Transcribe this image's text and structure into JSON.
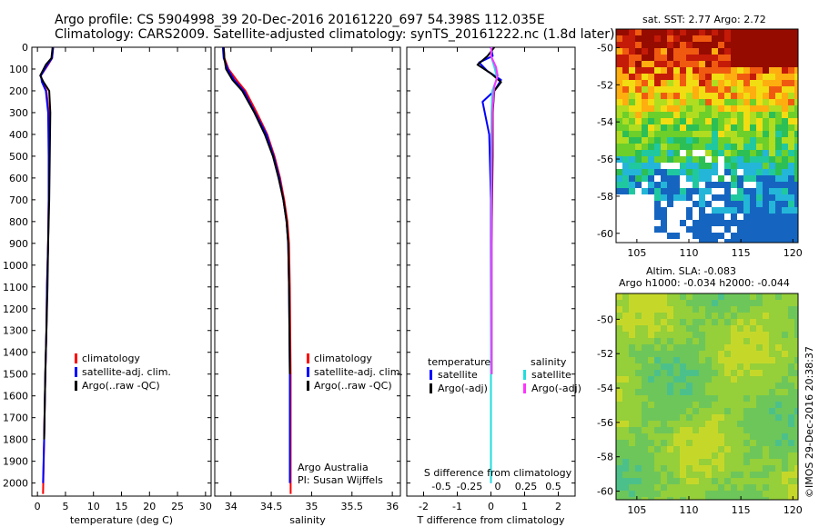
{
  "header": {
    "line1": "Argo profile: CS 5904998_39 20-Dec-2016 20161220_697 54.398S 112.035E",
    "line2": "Climatology: CARS2009. Satellite-adjusted climatology: synTS_20161222.nc (1.8d later)"
  },
  "side": {
    "sst_title": "sat. SST: 2.77 Argo: 2.72",
    "sla_title": "Altim. SLA: -0.083",
    "argo_h": "Argo h1000: -0.034 h2000: -0.044",
    "stamp": "©IMOS 29-Dec-2016 20:38:37"
  },
  "colors": {
    "climatology": "#ff0000",
    "satellite": "#0000ff",
    "argo": "#000000",
    "sal_satellite": "#22dddd",
    "sal_argo": "#ff33ff"
  },
  "chart_data": [
    {
      "type": "line",
      "xlabel": "temperature (deg C)",
      "xlim": [
        -1,
        31
      ],
      "ylim": [
        2060,
        0
      ],
      "xticks": [
        0,
        5,
        10,
        15,
        20,
        25,
        30
      ],
      "yticks": [
        0,
        100,
        200,
        300,
        400,
        500,
        600,
        700,
        800,
        900,
        1000,
        1100,
        1200,
        1300,
        1400,
        1500,
        1600,
        1700,
        1800,
        1900,
        2000
      ],
      "legend": [
        "climatology",
        "satellite-adj. clim.",
        "Argo(..raw -QC)"
      ],
      "series": [
        {
          "name": "climatology",
          "color": "#ff0000",
          "x": [
            2.8,
            2.6,
            1.9,
            0.6,
            0.9,
            1.6,
            2.0,
            2.1,
            2.0,
            1.9,
            1.7,
            1.6,
            1.4,
            1.2,
            1.0
          ],
          "y": [
            0,
            50,
            80,
            130,
            160,
            200,
            300,
            500,
            700,
            900,
            1100,
            1300,
            1500,
            1800,
            2050
          ]
        },
        {
          "name": "satellite-adj. clim.",
          "color": "#0000ff",
          "x": [
            2.8,
            2.6,
            1.8,
            0.6,
            0.8,
            1.5,
            1.9,
            2.0,
            2.0,
            1.9,
            1.7,
            1.6,
            1.4,
            1.2,
            1.0
          ],
          "y": [
            0,
            50,
            80,
            130,
            160,
            200,
            300,
            500,
            700,
            900,
            1100,
            1300,
            1500,
            1800,
            2000
          ]
        },
        {
          "name": "Argo(..raw -QC)",
          "color": "#000000",
          "x": [
            2.7,
            2.5,
            1.5,
            0.5,
            1.1,
            2.1,
            2.3,
            2.2,
            2.1,
            1.9,
            1.8,
            1.6,
            1.4,
            1.2
          ],
          "y": [
            0,
            50,
            80,
            130,
            160,
            200,
            300,
            500,
            700,
            900,
            1100,
            1300,
            1500,
            1800
          ]
        }
      ]
    },
    {
      "type": "line",
      "xlabel": "salinity",
      "xlim": [
        33.8,
        36.1
      ],
      "ylim": [
        2060,
        0
      ],
      "xticks": [
        34,
        34.5,
        35,
        35.5,
        36
      ],
      "legend": [
        "climatology",
        "satellite-adj. clim.",
        "Argo(..raw -QC)"
      ],
      "annotation": [
        "Argo Australia",
        "PI: Susan Wijffels"
      ],
      "series": [
        {
          "name": "climatology",
          "color": "#ff0000",
          "x": [
            33.91,
            33.92,
            33.97,
            34.07,
            34.18,
            34.32,
            34.45,
            34.54,
            34.61,
            34.66,
            34.7,
            34.72,
            34.73,
            34.74,
            34.74
          ],
          "y": [
            0,
            50,
            100,
            150,
            200,
            300,
            400,
            500,
            600,
            700,
            800,
            900,
            1100,
            1500,
            2050
          ]
        },
        {
          "name": "satellite-adj. clim.",
          "color": "#0000ff",
          "x": [
            33.9,
            33.91,
            33.96,
            34.04,
            34.16,
            34.3,
            34.44,
            34.53,
            34.6,
            34.65,
            34.69,
            34.71,
            34.72,
            34.73,
            34.73
          ],
          "y": [
            0,
            50,
            100,
            150,
            200,
            300,
            400,
            500,
            600,
            700,
            800,
            900,
            1100,
            1500,
            2000
          ]
        },
        {
          "name": "Argo(..raw -QC)",
          "color": "#000000",
          "x": [
            33.91,
            33.92,
            33.94,
            34.02,
            34.14,
            34.29,
            34.42,
            34.52,
            34.59,
            34.65,
            34.69,
            34.71,
            34.72,
            34.73
          ],
          "y": [
            0,
            50,
            100,
            150,
            200,
            300,
            400,
            500,
            600,
            700,
            800,
            900,
            1100,
            1500
          ]
        }
      ]
    },
    {
      "type": "line",
      "xlabel": "T difference from climatology",
      "xlabel_top": "S difference from climatology",
      "xlim": [
        -2.5,
        2.5
      ],
      "ylim": [
        2060,
        0
      ],
      "xticks": [
        -2,
        -1,
        0,
        1,
        2
      ],
      "xticks_top": [
        "-0.5",
        "-0.25",
        "0",
        "0.25",
        "0.5"
      ],
      "legend_titles": [
        "temperature",
        "salinity"
      ],
      "legend": [
        "satellite",
        "Argo(-adj)",
        "satellite",
        "Argo(-adj)"
      ],
      "series": [
        {
          "name": "satellite",
          "color": "#0000ff",
          "x": [
            0,
            0.05,
            -0.35,
            -0.1,
            0.3,
            0.1,
            -0.25,
            -0.05,
            0.0,
            0.0,
            0.0,
            0.0
          ],
          "y": [
            0,
            40,
            70,
            110,
            150,
            200,
            250,
            400,
            700,
            1000,
            1500,
            2000
          ]
        },
        {
          "name": "Argo(-adj)",
          "color": "#000000",
          "x": [
            0.1,
            -0.1,
            -0.4,
            0.0,
            0.3,
            0.1,
            0.05,
            0.05,
            0.02,
            0.02
          ],
          "y": [
            0,
            40,
            80,
            120,
            160,
            200,
            300,
            500,
            900,
            1500
          ]
        },
        {
          "name": "satellite",
          "color": "#22dddd",
          "x": [
            0.02,
            0.0,
            0.1,
            0.18,
            0.04,
            0.02,
            0.01,
            0.01,
            0.0,
            0.0
          ],
          "y": [
            0,
            40,
            90,
            140,
            200,
            300,
            500,
            900,
            1400,
            2000
          ]
        },
        {
          "name": "Argo(-adj)",
          "color": "#ff33ff",
          "x": [
            0.02,
            0.0,
            0.15,
            0.2,
            0.1,
            0.04,
            0.03,
            0.02,
            0.02
          ],
          "y": [
            0,
            40,
            90,
            130,
            180,
            300,
            500,
            900,
            1500
          ]
        }
      ]
    },
    {
      "type": "heatmap",
      "title": "sat. SST: 2.77 Argo: 2.72",
      "xlim": [
        103,
        120.5
      ],
      "ylim": [
        -60.5,
        -49
      ],
      "xticks": [
        105,
        110,
        115,
        120
      ],
      "yticks": [
        -50,
        -52,
        -54,
        -56,
        -58,
        -60
      ]
    },
    {
      "type": "heatmap",
      "title": "Altim. SLA: -0.083",
      "xlim": [
        103,
        120.5
      ],
      "ylim": [
        -60.5,
        -48.5
      ],
      "xticks": [
        105,
        110,
        115,
        120
      ],
      "yticks": [
        -50,
        -52,
        -54,
        -56,
        -58,
        -60
      ]
    }
  ]
}
